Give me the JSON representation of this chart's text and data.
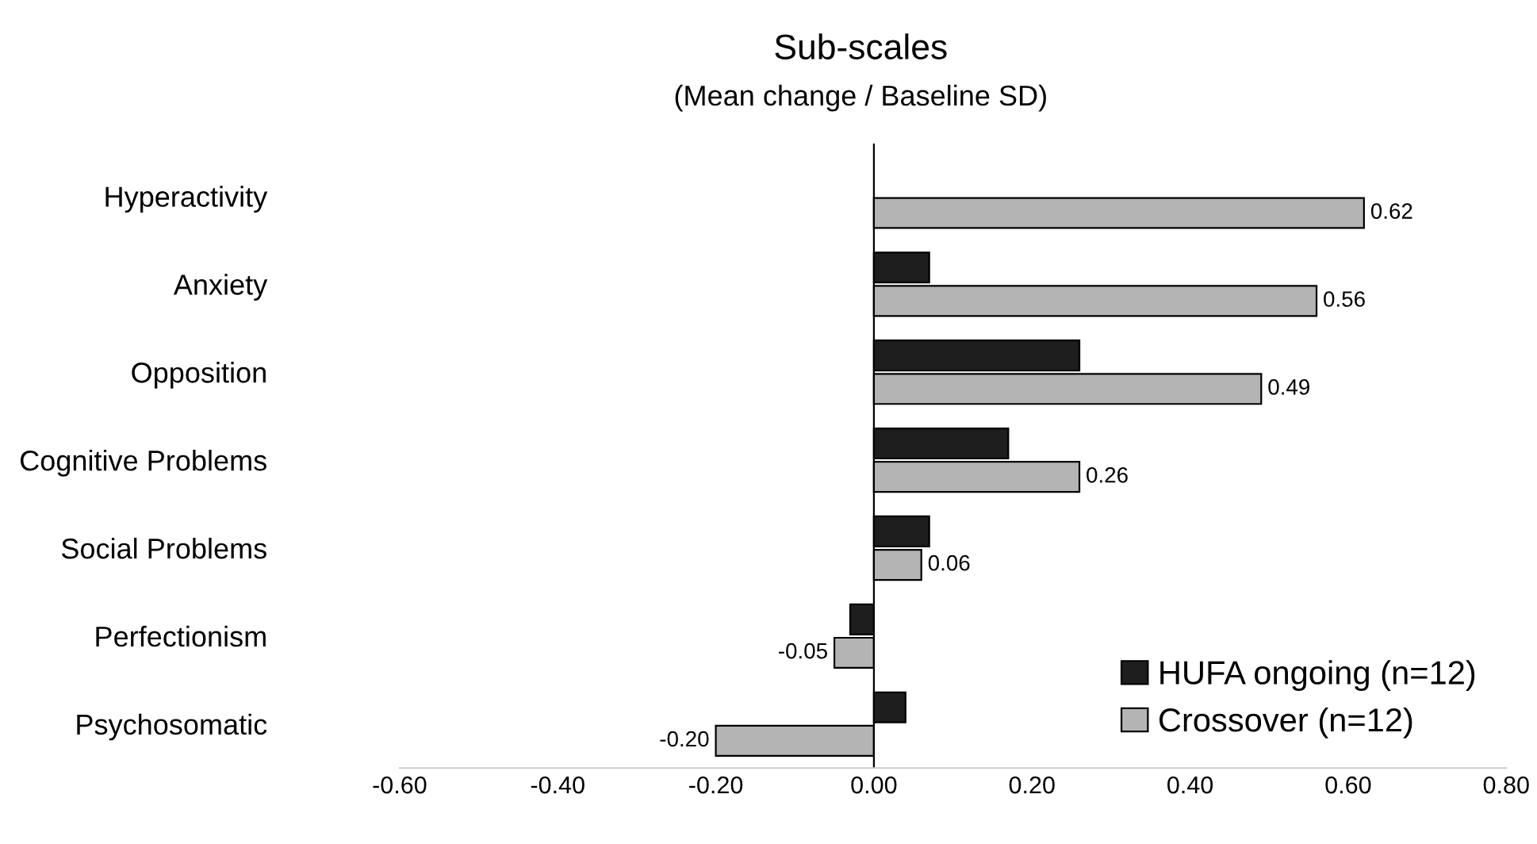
{
  "chart_data": {
    "type": "bar",
    "orientation": "horizontal",
    "title": "Sub-scales",
    "subtitle": "(Mean change / Baseline SD)",
    "categories": [
      "Hyperactivity",
      "Anxiety",
      "Opposition",
      "Cognitive Problems",
      "Social Problems",
      "Perfectionism",
      "Psychosomatic"
    ],
    "series": [
      {
        "name": "HUFA ongoing (n=12)",
        "color": "#1e1e1e",
        "values": [
          null,
          0.07,
          0.26,
          0.17,
          0.07,
          -0.03,
          0.04
        ]
      },
      {
        "name": "Crossover (n=12)",
        "color": "#b4b4b4",
        "values": [
          0.62,
          0.56,
          0.49,
          0.26,
          0.06,
          -0.05,
          -0.2
        ],
        "value_labels": [
          "0.62",
          "0.56",
          "0.49",
          "0.26",
          "0.06",
          "-0.05",
          "-0.20"
        ]
      }
    ],
    "xlim": [
      -0.6,
      0.8
    ],
    "xticks": [
      {
        "value": -0.6,
        "label": "-0.60"
      },
      {
        "value": -0.4,
        "label": "-0.40"
      },
      {
        "value": -0.2,
        "label": "-0.20"
      },
      {
        "value": 0,
        "label": "0.00"
      },
      {
        "value": 0.2,
        "label": "0.20"
      },
      {
        "value": 0.4,
        "label": "0.40"
      },
      {
        "value": 0.6,
        "label": "0.60"
      },
      {
        "value": 0.8,
        "label": "0.80"
      }
    ],
    "legend": "bottom right"
  }
}
